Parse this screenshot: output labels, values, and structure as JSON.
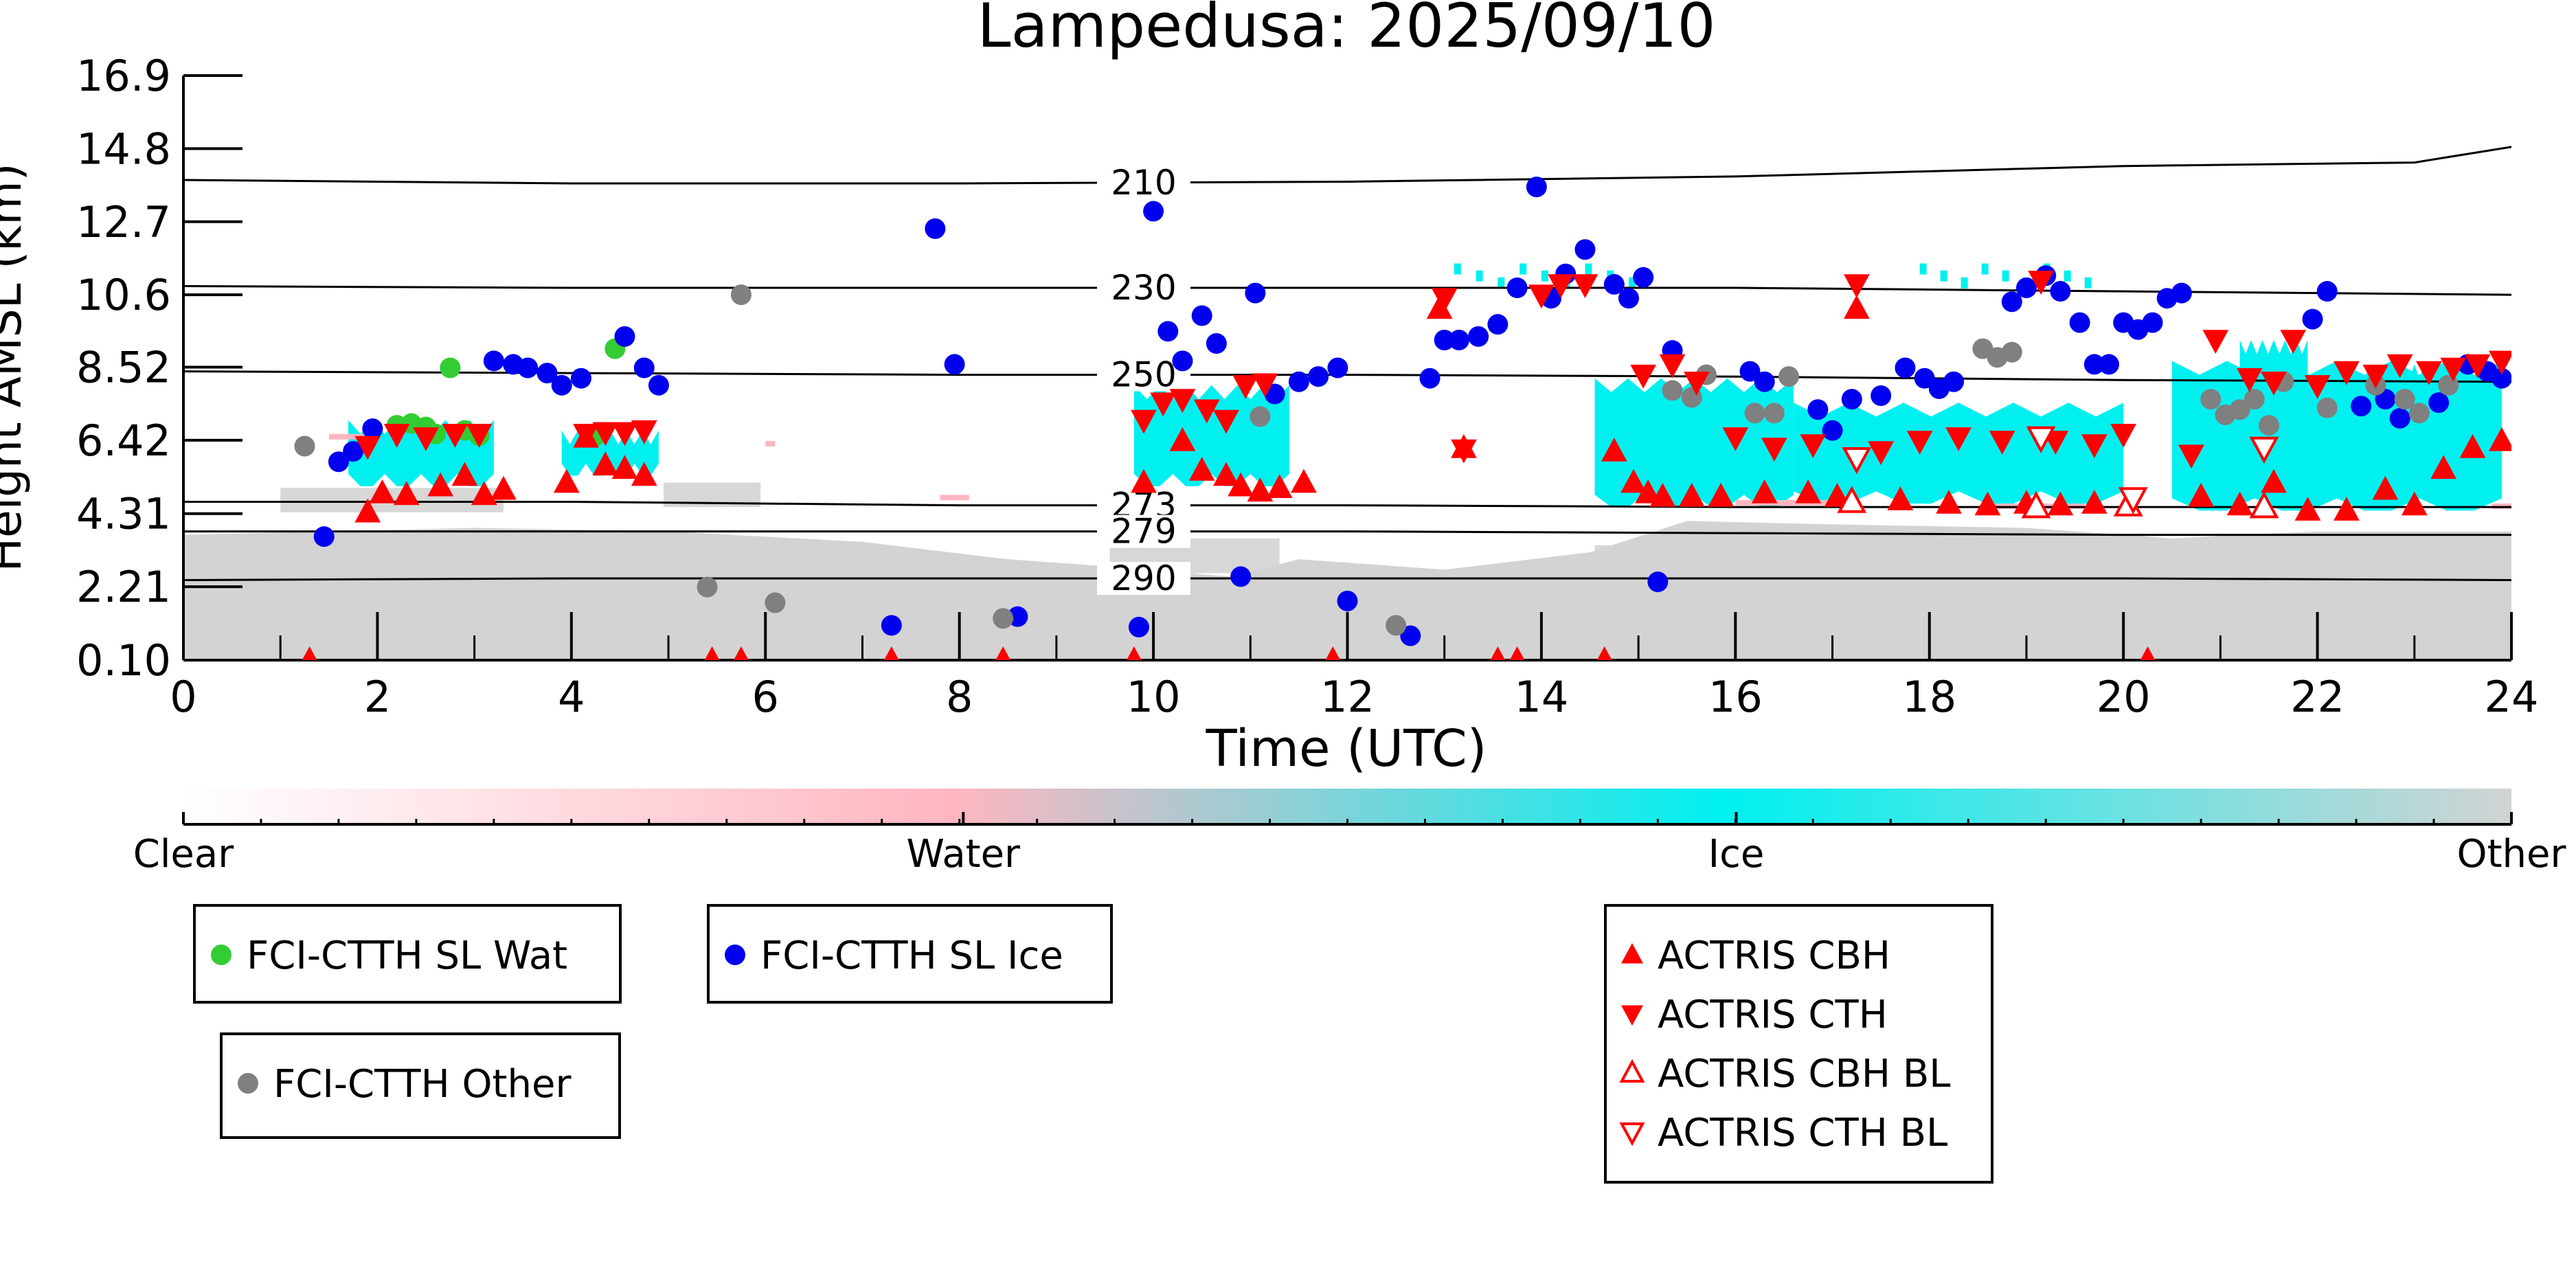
{
  "chart_data": {
    "type": "scatter",
    "title": "Lampedusa: 2025/09/10",
    "xlabel": "Time (UTC)",
    "ylabel": "Height AMSL (km)",
    "xlim": [
      0,
      24
    ],
    "ylim": [
      0.1,
      16.9
    ],
    "x_ticks": [
      "0",
      "2",
      "4",
      "6",
      "8",
      "10",
      "12",
      "14",
      "16",
      "18",
      "20",
      "22",
      "24"
    ],
    "y_ticks": [
      "0.10",
      "2.21",
      "4.31",
      "6.42",
      "8.52",
      "10.6",
      "12.7",
      "14.8",
      "16.9"
    ],
    "grid": false,
    "colorbar": {
      "labels": [
        "Clear",
        "Water",
        "Ice",
        "Other"
      ],
      "colors": [
        "#ffffff",
        "#ffb6c1",
        "#00f0f0",
        "#d3d3d3"
      ]
    },
    "temperature_isolines": [
      {
        "label": "210",
        "label_x": 9.9,
        "points": [
          [
            0,
            13.9
          ],
          [
            4,
            13.8
          ],
          [
            8,
            13.8
          ],
          [
            12,
            13.85
          ],
          [
            16,
            14.0
          ],
          [
            20,
            14.3
          ],
          [
            23,
            14.4
          ],
          [
            24,
            14.85
          ]
        ]
      },
      {
        "label": "230",
        "label_x": 9.9,
        "points": [
          [
            0,
            10.85
          ],
          [
            4,
            10.8
          ],
          [
            8,
            10.8
          ],
          [
            12,
            10.8
          ],
          [
            16,
            10.8
          ],
          [
            20,
            10.7
          ],
          [
            24,
            10.6
          ]
        ]
      },
      {
        "label": "250",
        "label_x": 9.9,
        "points": [
          [
            0,
            8.4
          ],
          [
            4,
            8.35
          ],
          [
            8,
            8.3
          ],
          [
            12,
            8.3
          ],
          [
            16,
            8.25
          ],
          [
            20,
            8.15
          ],
          [
            24,
            8.1
          ]
        ]
      },
      {
        "label": "273",
        "label_x": 9.9,
        "points": [
          [
            0,
            4.65
          ],
          [
            4,
            4.65
          ],
          [
            8,
            4.55
          ],
          [
            12,
            4.55
          ],
          [
            16,
            4.5
          ],
          [
            20,
            4.5
          ],
          [
            24,
            4.5
          ]
        ]
      },
      {
        "label": "279",
        "label_x": 9.9,
        "points": [
          [
            0,
            3.8
          ],
          [
            4,
            3.8
          ],
          [
            8,
            3.8
          ],
          [
            12,
            3.8
          ],
          [
            16,
            3.75
          ],
          [
            20,
            3.7
          ],
          [
            24,
            3.7
          ]
        ]
      },
      {
        "label": "290",
        "label_x": 9.9,
        "points": [
          [
            0,
            2.4
          ],
          [
            4,
            2.45
          ],
          [
            8,
            2.45
          ],
          [
            12,
            2.45
          ],
          [
            16,
            2.45
          ],
          [
            20,
            2.45
          ],
          [
            24,
            2.4
          ]
        ]
      }
    ],
    "series": [
      {
        "name": "FCI-CTTH SL Wat",
        "marker": "circle",
        "color": "#33cc33",
        "points": [
          [
            2.2,
            6.85
          ],
          [
            2.35,
            6.9
          ],
          [
            2.5,
            6.8
          ],
          [
            2.6,
            6.6
          ],
          [
            2.75,
            8.5
          ],
          [
            2.9,
            6.7
          ],
          [
            3.05,
            6.55
          ],
          [
            4.25,
            6.55
          ],
          [
            4.45,
            9.05
          ]
        ]
      },
      {
        "name": "FCI-CTTH SL Ice",
        "marker": "circle",
        "color": "#0000ee",
        "points": [
          [
            1.45,
            3.65
          ],
          [
            1.6,
            5.8
          ],
          [
            1.75,
            6.1
          ],
          [
            1.95,
            6.75
          ],
          [
            3.2,
            8.7
          ],
          [
            3.4,
            8.6
          ],
          [
            3.55,
            8.5
          ],
          [
            3.75,
            8.35
          ],
          [
            3.9,
            8.0
          ],
          [
            4.1,
            8.2
          ],
          [
            4.55,
            9.4
          ],
          [
            4.75,
            8.5
          ],
          [
            4.9,
            8.0
          ],
          [
            7.3,
            1.1
          ],
          [
            7.75,
            12.5
          ],
          [
            7.95,
            8.6
          ],
          [
            8.6,
            1.35
          ],
          [
            9.85,
            1.05
          ],
          [
            10.0,
            13.0
          ],
          [
            10.15,
            9.55
          ],
          [
            10.3,
            8.7
          ],
          [
            10.5,
            10.0
          ],
          [
            10.65,
            9.2
          ],
          [
            10.9,
            2.5
          ],
          [
            11.05,
            10.65
          ],
          [
            11.25,
            7.75
          ],
          [
            11.5,
            8.1
          ],
          [
            11.7,
            8.25
          ],
          [
            11.9,
            8.5
          ],
          [
            12.0,
            1.8
          ],
          [
            12.65,
            0.8
          ],
          [
            12.85,
            8.2
          ],
          [
            13.0,
            9.3
          ],
          [
            13.15,
            9.3
          ],
          [
            13.35,
            9.4
          ],
          [
            13.55,
            9.75
          ],
          [
            13.75,
            10.8
          ],
          [
            13.95,
            13.7
          ],
          [
            14.1,
            10.5
          ],
          [
            14.25,
            11.2
          ],
          [
            14.45,
            11.9
          ],
          [
            14.75,
            10.9
          ],
          [
            14.9,
            10.5
          ],
          [
            15.05,
            11.1
          ],
          [
            15.2,
            2.35
          ],
          [
            15.35,
            9.0
          ],
          [
            16.15,
            8.4
          ],
          [
            16.3,
            8.1
          ],
          [
            16.85,
            7.3
          ],
          [
            17.0,
            6.7
          ],
          [
            17.2,
            7.6
          ],
          [
            17.5,
            7.7
          ],
          [
            17.75,
            8.5
          ],
          [
            17.95,
            8.2
          ],
          [
            18.1,
            7.9
          ],
          [
            18.25,
            8.1
          ],
          [
            18.85,
            10.4
          ],
          [
            19.0,
            10.8
          ],
          [
            19.2,
            11.15
          ],
          [
            19.35,
            10.7
          ],
          [
            19.55,
            9.8
          ],
          [
            19.7,
            8.6
          ],
          [
            19.85,
            8.6
          ],
          [
            20.0,
            9.8
          ],
          [
            20.15,
            9.6
          ],
          [
            20.3,
            9.8
          ],
          [
            20.45,
            10.5
          ],
          [
            20.6,
            10.65
          ],
          [
            21.95,
            9.9
          ],
          [
            22.1,
            10.7
          ],
          [
            22.45,
            7.4
          ],
          [
            22.7,
            7.6
          ],
          [
            22.85,
            7.05
          ],
          [
            23.25,
            7.5
          ],
          [
            23.55,
            8.6
          ],
          [
            23.75,
            8.4
          ],
          [
            23.9,
            8.2
          ]
        ]
      },
      {
        "name": "FCI-CTTH Other",
        "marker": "circle",
        "color": "#808080",
        "points": [
          [
            1.25,
            6.25
          ],
          [
            5.4,
            2.2
          ],
          [
            5.75,
            10.6
          ],
          [
            6.1,
            1.75
          ],
          [
            8.45,
            1.3
          ],
          [
            11.1,
            7.1
          ],
          [
            12.5,
            1.1
          ],
          [
            15.35,
            7.85
          ],
          [
            15.55,
            7.65
          ],
          [
            15.7,
            8.3
          ],
          [
            16.2,
            7.2
          ],
          [
            16.4,
            7.2
          ],
          [
            16.55,
            8.25
          ],
          [
            18.55,
            9.05
          ],
          [
            18.7,
            8.8
          ],
          [
            18.85,
            8.95
          ],
          [
            20.9,
            7.6
          ],
          [
            21.05,
            7.15
          ],
          [
            21.2,
            7.3
          ],
          [
            21.35,
            7.6
          ],
          [
            21.5,
            6.85
          ],
          [
            21.65,
            8.1
          ],
          [
            22.1,
            7.35
          ],
          [
            22.6,
            8.0
          ],
          [
            22.9,
            7.6
          ],
          [
            23.05,
            7.2
          ],
          [
            23.35,
            8.0
          ]
        ]
      },
      {
        "name": "ACTRIS CBH",
        "marker": "triangle-up",
        "color": "#ff0000",
        "filled": true,
        "points": [
          [
            1.3,
            0.1
          ],
          [
            1.9,
            4.35
          ],
          [
            2.05,
            4.9
          ],
          [
            2.3,
            4.85
          ],
          [
            2.65,
            5.1
          ],
          [
            2.9,
            5.4
          ],
          [
            3.1,
            4.85
          ],
          [
            3.3,
            5.0
          ],
          [
            3.95,
            5.2
          ],
          [
            4.15,
            6.5
          ],
          [
            4.35,
            5.7
          ],
          [
            4.55,
            5.6
          ],
          [
            4.75,
            5.4
          ],
          [
            5.45,
            0.1
          ],
          [
            5.75,
            0.1
          ],
          [
            7.3,
            0.1
          ],
          [
            8.45,
            0.1
          ],
          [
            9.8,
            0.1
          ],
          [
            9.9,
            5.2
          ],
          [
            10.3,
            6.4
          ],
          [
            10.5,
            5.55
          ],
          [
            10.75,
            5.4
          ],
          [
            10.9,
            5.1
          ],
          [
            11.1,
            4.95
          ],
          [
            11.3,
            5.05
          ],
          [
            11.55,
            5.2
          ],
          [
            11.85,
            0.1
          ],
          [
            12.95,
            10.2
          ],
          [
            13.2,
            6.2
          ],
          [
            13.55,
            0.1
          ],
          [
            13.75,
            0.1
          ],
          [
            14.65,
            0.1
          ],
          [
            14.75,
            6.1
          ],
          [
            14.95,
            5.2
          ],
          [
            15.1,
            4.9
          ],
          [
            15.25,
            4.8
          ],
          [
            15.55,
            4.8
          ],
          [
            15.85,
            4.8
          ],
          [
            16.3,
            4.9
          ],
          [
            16.75,
            4.9
          ],
          [
            17.05,
            4.8
          ],
          [
            17.25,
            10.2
          ],
          [
            17.7,
            4.7
          ],
          [
            18.2,
            4.6
          ],
          [
            18.6,
            4.55
          ],
          [
            19.0,
            4.6
          ],
          [
            19.35,
            4.55
          ],
          [
            19.7,
            4.6
          ],
          [
            20.25,
            0.1
          ],
          [
            20.8,
            4.8
          ],
          [
            21.2,
            4.55
          ],
          [
            21.55,
            5.2
          ],
          [
            21.9,
            4.4
          ],
          [
            22.3,
            4.4
          ],
          [
            22.7,
            5.0
          ],
          [
            23.0,
            4.55
          ],
          [
            23.3,
            5.6
          ],
          [
            23.6,
            6.2
          ],
          [
            23.9,
            6.4
          ]
        ]
      },
      {
        "name": "ACTRIS CTH",
        "marker": "triangle-down",
        "color": "#ff0000",
        "filled": true,
        "points": [
          [
            1.9,
            6.25
          ],
          [
            2.2,
            6.6
          ],
          [
            2.5,
            6.5
          ],
          [
            2.8,
            6.6
          ],
          [
            3.05,
            6.6
          ],
          [
            4.15,
            6.6
          ],
          [
            4.35,
            6.65
          ],
          [
            4.55,
            6.65
          ],
          [
            4.75,
            6.7
          ],
          [
            9.9,
            7.0
          ],
          [
            10.1,
            7.5
          ],
          [
            10.3,
            7.6
          ],
          [
            10.55,
            7.3
          ],
          [
            10.75,
            7.0
          ],
          [
            10.95,
            8.0
          ],
          [
            11.15,
            8.05
          ],
          [
            13.0,
            10.5
          ],
          [
            13.2,
            6.15
          ],
          [
            14.0,
            10.6
          ],
          [
            14.2,
            10.9
          ],
          [
            14.45,
            10.9
          ],
          [
            15.05,
            8.3
          ],
          [
            15.35,
            8.6
          ],
          [
            15.6,
            8.1
          ],
          [
            16.0,
            6.5
          ],
          [
            16.4,
            6.2
          ],
          [
            16.8,
            6.3
          ],
          [
            17.25,
            10.9
          ],
          [
            17.5,
            6.1
          ],
          [
            17.9,
            6.4
          ],
          [
            18.3,
            6.5
          ],
          [
            18.75,
            6.4
          ],
          [
            19.15,
            11.0
          ],
          [
            19.3,
            6.4
          ],
          [
            19.7,
            6.3
          ],
          [
            20.0,
            6.6
          ],
          [
            20.7,
            6.0
          ],
          [
            20.95,
            9.3
          ],
          [
            21.3,
            8.2
          ],
          [
            21.55,
            8.1
          ],
          [
            21.75,
            9.3
          ],
          [
            22.0,
            8.0
          ],
          [
            22.3,
            8.4
          ],
          [
            22.6,
            8.3
          ],
          [
            22.85,
            8.6
          ],
          [
            23.15,
            8.4
          ],
          [
            23.4,
            8.5
          ],
          [
            23.65,
            8.6
          ],
          [
            23.9,
            8.7
          ]
        ]
      },
      {
        "name": "ACTRIS CBH BL",
        "marker": "triangle-up",
        "color": "#ff0000",
        "filled": false,
        "points": [
          [
            17.2,
            4.65
          ],
          [
            19.1,
            4.5
          ],
          [
            20.05,
            4.55
          ],
          [
            21.45,
            4.5
          ]
        ]
      },
      {
        "name": "ACTRIS CTH BL",
        "marker": "triangle-down",
        "color": "#ff0000",
        "filled": false,
        "points": [
          [
            17.25,
            5.9
          ],
          [
            19.15,
            6.5
          ],
          [
            20.1,
            4.75
          ],
          [
            21.45,
            6.2
          ]
        ]
      }
    ],
    "legend_groups": [
      [
        "FCI-CTTH SL Wat"
      ],
      [
        "FCI-CTTH SL Ice"
      ],
      [
        "FCI-CTTH Other"
      ],
      [
        "ACTRIS CBH",
        "ACTRIS CTH",
        "ACTRIS CBH BL",
        "ACTRIS CTH BL"
      ]
    ],
    "legend_placement": "below"
  }
}
